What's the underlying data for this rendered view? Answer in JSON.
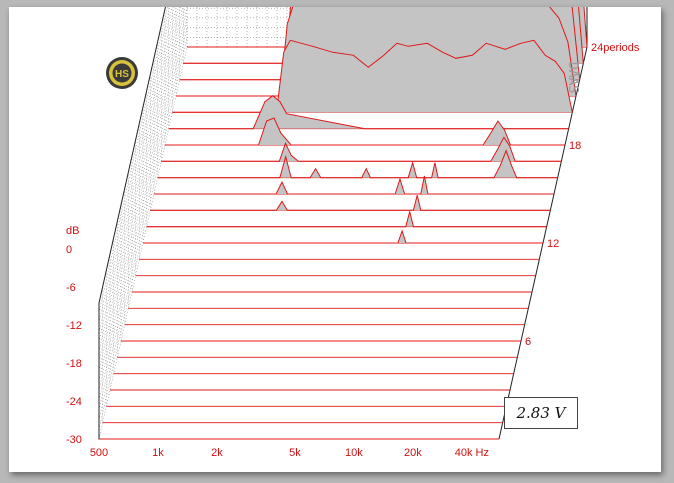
{
  "colors": {
    "trace": "#e01818",
    "fill": "#c4c4c4",
    "grid": "#8a8a8a",
    "label": "#d01010",
    "axis": "#222222"
  },
  "logo_text": "HS",
  "watermark": "DAAS",
  "voltage_label": "2.83 V",
  "chart_data": {
    "type": "waterfall",
    "title": "",
    "x_ticks": [
      "500",
      "1k",
      "2k",
      "5k",
      "10k",
      "20k",
      "40k Hz"
    ],
    "x_tick_values": [
      500,
      1000,
      2000,
      5000,
      10000,
      20000,
      40000
    ],
    "xlim": [
      500,
      55000
    ],
    "x_scale": "log",
    "y_unit_label": "dB",
    "y_ticks": [
      "0",
      "-6",
      "-12",
      "-18",
      "-24",
      "-30"
    ],
    "y_tick_values": [
      0,
      -6,
      -12,
      -18,
      -24,
      -30
    ],
    "ylim": [
      -30,
      0
    ],
    "z_ticks": [
      "6",
      "12",
      "18",
      "24periods"
    ],
    "z_tick_values": [
      6,
      12,
      18,
      24
    ],
    "z_count": 24,
    "series": [
      {
        "period": 0,
        "points": [
          [
            500,
            -40
          ],
          [
            1700,
            -40
          ],
          [
            1850,
            -8
          ],
          [
            2000,
            1
          ],
          [
            2200,
            3
          ],
          [
            2600,
            4
          ],
          [
            3000,
            6
          ],
          [
            3500,
            5
          ],
          [
            4000,
            8
          ],
          [
            5000,
            9
          ],
          [
            6000,
            8
          ],
          [
            7000,
            9
          ],
          [
            8000,
            13
          ],
          [
            10000,
            14
          ],
          [
            12000,
            13
          ],
          [
            15000,
            14
          ],
          [
            20000,
            15
          ],
          [
            25000,
            16
          ],
          [
            30000,
            17
          ],
          [
            35000,
            16.5
          ],
          [
            40000,
            15
          ],
          [
            45000,
            8
          ],
          [
            50000,
            -4
          ],
          [
            55000,
            -40
          ]
        ]
      },
      {
        "period": 1,
        "points": [
          [
            500,
            -40
          ],
          [
            1700,
            -40
          ],
          [
            1850,
            -12
          ],
          [
            2000,
            -4
          ],
          [
            2500,
            -2
          ],
          [
            3000,
            -1
          ],
          [
            4000,
            2
          ],
          [
            5000,
            3
          ],
          [
            6000,
            2
          ],
          [
            7000,
            4
          ],
          [
            8000,
            7
          ],
          [
            10000,
            8
          ],
          [
            12000,
            7
          ],
          [
            15000,
            7
          ],
          [
            20000,
            9
          ],
          [
            25000,
            10
          ],
          [
            30000,
            11
          ],
          [
            35000,
            10
          ],
          [
            40000,
            8
          ],
          [
            45000,
            0
          ],
          [
            50000,
            -8
          ],
          [
            55000,
            -40
          ]
        ]
      },
      {
        "period": 2,
        "points": [
          [
            500,
            -40
          ],
          [
            1700,
            -40
          ],
          [
            1850,
            -14
          ],
          [
            2000,
            -7
          ],
          [
            2500,
            -5
          ],
          [
            3000,
            -4
          ],
          [
            4000,
            -3
          ],
          [
            5000,
            -2
          ],
          [
            6000,
            -2
          ],
          [
            8000,
            0
          ],
          [
            10000,
            1
          ],
          [
            13000,
            0
          ],
          [
            16000,
            1
          ],
          [
            20000,
            3
          ],
          [
            25000,
            3
          ],
          [
            30000,
            4
          ],
          [
            35000,
            3
          ],
          [
            40000,
            0
          ],
          [
            45000,
            -6
          ],
          [
            50000,
            -14
          ],
          [
            55000,
            -40
          ]
        ]
      },
      {
        "period": 3,
        "points": [
          [
            500,
            -40
          ],
          [
            1700,
            -40
          ],
          [
            1850,
            -16
          ],
          [
            2000,
            -9
          ],
          [
            2600,
            -9
          ],
          [
            3200,
            -8
          ],
          [
            4000,
            -9
          ],
          [
            5000,
            -9
          ],
          [
            6000,
            -10
          ],
          [
            7000,
            -7
          ],
          [
            8000,
            -7
          ],
          [
            10000,
            -7
          ],
          [
            13000,
            -9
          ],
          [
            16000,
            -10
          ],
          [
            20000,
            -7
          ],
          [
            25000,
            -6
          ],
          [
            30000,
            -5
          ],
          [
            35000,
            -6
          ],
          [
            40000,
            -10
          ],
          [
            45000,
            -14
          ],
          [
            50000,
            -22
          ],
          [
            55000,
            -40
          ]
        ]
      },
      {
        "period": 4,
        "points": [
          [
            500,
            -40
          ],
          [
            1700,
            -40
          ],
          [
            1850,
            -20
          ],
          [
            2000,
            -16
          ],
          [
            2600,
            -18
          ],
          [
            3300,
            -20
          ],
          [
            4200,
            -21
          ],
          [
            5000,
            -25
          ],
          [
            6000,
            -21
          ],
          [
            7000,
            -17
          ],
          [
            8000,
            -18
          ],
          [
            10000,
            -17
          ],
          [
            12000,
            -20
          ],
          [
            14000,
            -22
          ],
          [
            17000,
            -21
          ],
          [
            20000,
            -17
          ],
          [
            25000,
            -19
          ],
          [
            30000,
            -17
          ],
          [
            35000,
            -16
          ],
          [
            40000,
            -21
          ],
          [
            45000,
            -23
          ],
          [
            50000,
            -27
          ],
          [
            55000,
            -40
          ]
        ]
      },
      {
        "period": 5,
        "points": [
          [
            500,
            -40
          ],
          [
            1350,
            -40
          ],
          [
            1550,
            -31
          ],
          [
            1700,
            -29
          ],
          [
            1850,
            -31
          ],
          [
            2000,
            -35
          ],
          [
            5000,
            -40
          ],
          [
            55000,
            -40
          ]
        ]
      },
      {
        "period": 6,
        "points": [
          [
            500,
            -40
          ],
          [
            1500,
            -40
          ],
          [
            1650,
            -32
          ],
          [
            1800,
            -31
          ],
          [
            1950,
            -36
          ],
          [
            2200,
            -40
          ],
          [
            21000,
            -40
          ],
          [
            23000,
            -36
          ],
          [
            25000,
            -32
          ],
          [
            27000,
            -35
          ],
          [
            29000,
            -40
          ],
          [
            55000,
            -40
          ]
        ]
      },
      {
        "period": 7,
        "points": [
          [
            500,
            -40
          ],
          [
            2000,
            -40
          ],
          [
            2150,
            -34
          ],
          [
            2300,
            -38
          ],
          [
            2500,
            -40
          ],
          [
            24000,
            -40
          ],
          [
            26000,
            -36
          ],
          [
            28000,
            -32
          ],
          [
            30000,
            -35
          ],
          [
            32000,
            -40
          ],
          [
            55000,
            -40
          ]
        ]
      },
      {
        "period": 8,
        "points": [
          [
            500,
            -40
          ],
          [
            2100,
            -40
          ],
          [
            2250,
            -33
          ],
          [
            2400,
            -40
          ],
          [
            3000,
            -40
          ],
          [
            3200,
            -37
          ],
          [
            3400,
            -40
          ],
          [
            5500,
            -40
          ],
          [
            5800,
            -37
          ],
          [
            6100,
            -40
          ],
          [
            9500,
            -40
          ],
          [
            10000,
            -35
          ],
          [
            10500,
            -40
          ],
          [
            12500,
            -40
          ],
          [
            13000,
            -35
          ],
          [
            13500,
            -40
          ],
          [
            26000,
            -40
          ],
          [
            28000,
            -36
          ],
          [
            30000,
            -31
          ],
          [
            32000,
            -36
          ],
          [
            34000,
            -40
          ],
          [
            55000,
            -40
          ]
        ]
      },
      {
        "period": 9,
        "points": [
          [
            500,
            -40
          ],
          [
            2100,
            -40
          ],
          [
            2250,
            -36
          ],
          [
            2400,
            -40
          ],
          [
            8500,
            -40
          ],
          [
            9000,
            -35
          ],
          [
            9500,
            -40
          ],
          [
            11500,
            -40
          ],
          [
            12000,
            -34
          ],
          [
            12500,
            -40
          ],
          [
            55000,
            -40
          ]
        ]
      },
      {
        "period": 10,
        "points": [
          [
            500,
            -40
          ],
          [
            2200,
            -40
          ],
          [
            2350,
            -37
          ],
          [
            2500,
            -40
          ],
          [
            11000,
            -40
          ],
          [
            11500,
            -35
          ],
          [
            12000,
            -40
          ],
          [
            55000,
            -40
          ]
        ]
      },
      {
        "period": 11,
        "points": [
          [
            500,
            -40
          ],
          [
            10500,
            -40
          ],
          [
            11000,
            -35
          ],
          [
            11500,
            -40
          ],
          [
            55000,
            -40
          ]
        ]
      },
      {
        "period": 12,
        "points": [
          [
            500,
            -40
          ],
          [
            10000,
            -40
          ],
          [
            10500,
            -36
          ],
          [
            11000,
            -40
          ],
          [
            55000,
            -40
          ]
        ]
      }
    ]
  }
}
